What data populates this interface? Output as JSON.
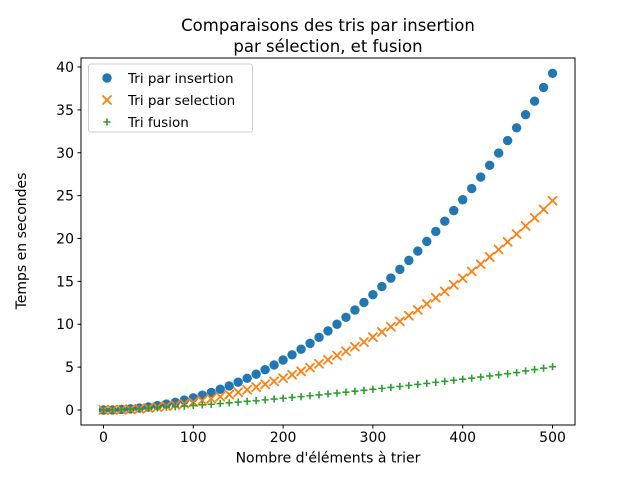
{
  "figure": {
    "title_line1": "Comparaisons des tris par insertion",
    "title_line2": "par sélection, et fusion",
    "xlabel": "Nombre d'éléments à trier",
    "ylabel": "Temps en secondes"
  },
  "colors": {
    "background": "#ffffff",
    "axis": "#000000",
    "legend_border": "#cccccc",
    "series_insertion": "#1f77b4",
    "series_selection": "#ff7f0e",
    "series_fusion": "#2ca02c"
  },
  "chart_data": {
    "type": "scatter",
    "title": "Comparaisons des tris par insertion\npar sélection, et fusion",
    "xlabel": "Nombre d'éléments à trier",
    "ylabel": "Temps en secondes",
    "xlim": [
      -25,
      525
    ],
    "ylim": [
      -1.75,
      41.05
    ],
    "xticks": [
      0,
      100,
      200,
      300,
      400,
      500
    ],
    "yticks": [
      0,
      5,
      10,
      15,
      20,
      25,
      30,
      35,
      40
    ],
    "grid": false,
    "legend_position": "upper left",
    "x": [
      0,
      10,
      20,
      30,
      40,
      50,
      60,
      70,
      80,
      90,
      100,
      110,
      120,
      130,
      140,
      150,
      160,
      170,
      180,
      190,
      200,
      210,
      220,
      230,
      240,
      250,
      260,
      270,
      280,
      290,
      300,
      310,
      320,
      330,
      340,
      350,
      360,
      370,
      380,
      390,
      400,
      410,
      420,
      430,
      440,
      450,
      460,
      470,
      480,
      490,
      500
    ],
    "series": [
      {
        "name": "Tri par insertion",
        "marker": "o",
        "color": "#1f77b4",
        "values": [
          0,
          0.01,
          0.06,
          0.13,
          0.22,
          0.35,
          0.51,
          0.69,
          0.9,
          1.15,
          1.42,
          1.72,
          2.05,
          2.42,
          2.81,
          3.24,
          3.69,
          4.18,
          4.7,
          5.25,
          5.83,
          6.44,
          7.09,
          7.77,
          8.48,
          9.22,
          10.0,
          10.81,
          11.66,
          12.54,
          13.45,
          14.4,
          15.38,
          16.4,
          17.45,
          18.54,
          19.66,
          20.82,
          22.02,
          23.25,
          24.52,
          25.82,
          27.17,
          28.54,
          29.96,
          31.42,
          32.91,
          34.44,
          36.01,
          37.62,
          39.27
        ]
      },
      {
        "name": "Tri par selection",
        "marker": "x",
        "color": "#ff7f0e",
        "values": [
          0,
          0.01,
          0.04,
          0.08,
          0.15,
          0.23,
          0.33,
          0.45,
          0.58,
          0.74,
          0.91,
          1.11,
          1.32,
          1.55,
          1.8,
          2.07,
          2.36,
          2.67,
          3.0,
          3.35,
          3.72,
          4.11,
          4.51,
          4.94,
          5.39,
          5.86,
          6.35,
          6.85,
          7.38,
          7.93,
          8.5,
          9.1,
          9.71,
          10.34,
          11.0,
          11.67,
          12.37,
          13.09,
          13.83,
          14.59,
          15.37,
          16.17,
          17.0,
          17.85,
          18.72,
          19.61,
          20.52,
          21.46,
          22.42,
          23.4,
          24.4
        ]
      },
      {
        "name": "Tri fusion",
        "marker": "+",
        "color": "#2ca02c",
        "values": [
          0,
          0.02,
          0.06,
          0.1,
          0.15,
          0.2,
          0.26,
          0.32,
          0.38,
          0.45,
          0.52,
          0.6,
          0.67,
          0.75,
          0.84,
          0.92,
          1.01,
          1.09,
          1.18,
          1.28,
          1.37,
          1.47,
          1.56,
          1.66,
          1.76,
          1.87,
          1.97,
          2.08,
          2.19,
          2.29,
          2.41,
          2.52,
          2.63,
          2.75,
          2.86,
          2.98,
          3.1,
          3.22,
          3.34,
          3.46,
          3.59,
          3.71,
          3.84,
          3.97,
          4.1,
          4.23,
          4.36,
          4.55,
          4.71,
          4.88,
          5.05
        ]
      }
    ]
  }
}
